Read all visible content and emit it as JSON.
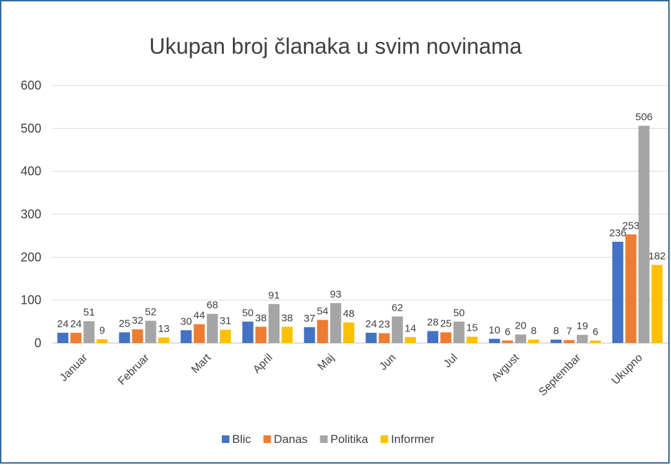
{
  "chart_data": {
    "type": "bar",
    "title": "Ukupan broj članaka u svim novinama",
    "categories": [
      "Januar",
      "Februar",
      "Mart",
      "April",
      "Maj",
      "Jun",
      "Jul",
      "Avgust",
      "Septembar",
      "Ukupno"
    ],
    "series": [
      {
        "name": "Blic",
        "color": "#4472c4",
        "values": [
          24,
          25,
          30,
          50,
          37,
          24,
          28,
          10,
          8,
          236
        ]
      },
      {
        "name": "Danas",
        "color": "#ed7d31",
        "values": [
          24,
          32,
          44,
          38,
          54,
          23,
          25,
          6,
          7,
          253
        ]
      },
      {
        "name": "Politika",
        "color": "#a5a5a5",
        "values": [
          51,
          52,
          68,
          91,
          93,
          62,
          50,
          20,
          19,
          506
        ]
      },
      {
        "name": "Informer",
        "color": "#ffc000",
        "values": [
          9,
          13,
          31,
          38,
          48,
          14,
          15,
          8,
          6,
          182
        ]
      }
    ],
    "ylim": [
      0,
      600
    ],
    "yticks": [
      0,
      100,
      200,
      300,
      400,
      500,
      600
    ],
    "grid": true,
    "legend": "bottom"
  }
}
